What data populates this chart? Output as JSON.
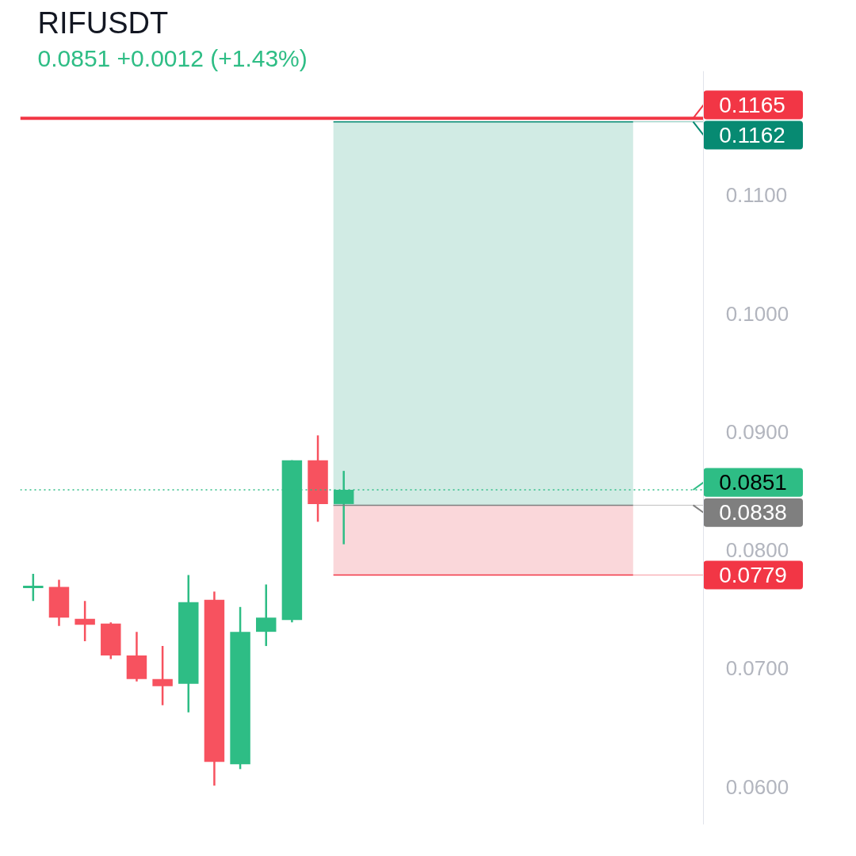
{
  "chart_data": {
    "type": "candlestick",
    "title": "RIFUSDT",
    "subtitle": "0.0851  +0.0012 (+1.43%)",
    "categories": [
      null,
      null,
      null,
      null,
      null,
      null,
      null,
      null,
      null,
      null,
      null,
      null,
      null,
      null,
      null,
      null,
      null,
      null,
      null,
      null,
      null,
      null,
      null,
      null,
      null,
      null,
      null,
      null,
      null,
      null,
      null,
      null
    ],
    "ohlc": [
      [
        0.0769,
        0.078,
        0.0757,
        0.0769
      ],
      [
        0.0769,
        0.0775,
        0.0736,
        0.0743
      ],
      [
        0.0742,
        0.0757,
        0.0723,
        0.0737
      ],
      [
        0.0738,
        0.0739,
        0.0708,
        0.0711
      ],
      [
        0.0711,
        0.0731,
        0.0689,
        0.0691
      ],
      [
        0.0691,
        0.0719,
        0.0669,
        0.0685
      ],
      [
        0.0687,
        0.0779,
        0.0663,
        0.0756
      ],
      [
        0.0758,
        0.0765,
        0.0601,
        0.0621
      ],
      [
        0.0619,
        0.0752,
        0.0615,
        0.0731
      ],
      [
        0.0731,
        0.0771,
        0.0719,
        0.0743
      ],
      [
        0.0741,
        0.0876,
        0.0739,
        0.0876
      ],
      [
        0.0876,
        0.0897,
        0.0824,
        0.0839
      ],
      [
        0.0839,
        0.0867,
        0.0805,
        0.0851
      ],
      null,
      null,
      null,
      null,
      null,
      null,
      null,
      null,
      null,
      null,
      null,
      null,
      null,
      null,
      null,
      null,
      null,
      null,
      null
    ],
    "colors": [
      "#2ebd85",
      "#f7525f",
      "#f7525f",
      "#f7525f",
      "#f7525f",
      "#f7525f",
      "#2ebd85",
      "#f7525f",
      "#2ebd85",
      "#2ebd85",
      "#2ebd85",
      "#f7525f",
      "#2ebd85",
      null,
      null,
      null,
      null,
      null,
      null,
      null,
      null,
      null,
      null,
      null,
      null,
      null,
      null,
      null,
      null,
      null,
      null,
      null
    ],
    "ylim": [
      0.0568,
      0.1205
    ],
    "yticks": [
      {
        "value": 0.06,
        "label": "0.0600"
      },
      {
        "value": 0.07,
        "label": "0.0700"
      },
      {
        "value": 0.08,
        "label": "0.0800"
      },
      {
        "value": 0.09,
        "label": "0.0900"
      },
      {
        "value": 0.1,
        "label": "0.1000"
      },
      {
        "value": 0.11,
        "label": "0.1100"
      }
    ],
    "tick_labels": "y",
    "ref_lines": [
      {
        "axis": "y",
        "value": 0.1165,
        "label": "0.1165",
        "color": "#f23645",
        "line_style": "solid"
      },
      {
        "axis": "y",
        "value": 0.1162,
        "label": "0.1162",
        "color": "#078a72"
      },
      {
        "axis": "y",
        "value": 0.0851,
        "label": "0.0851",
        "color": "#2ebd85",
        "line_style": "dotted"
      },
      {
        "axis": "y",
        "value": 0.0838,
        "label": "0.0838",
        "color": "#7f7f7f"
      },
      {
        "axis": "y",
        "value": 0.0779,
        "label": "0.0779",
        "color": "#f23645"
      }
    ],
    "bands": [
      {
        "axis": "y",
        "from": 0.0838,
        "to": 0.1162,
        "color": "#d1ebe4"
      },
      {
        "axis": "y",
        "from": 0.0779,
        "to": 0.0838,
        "color": "#fad7da"
      }
    ]
  }
}
